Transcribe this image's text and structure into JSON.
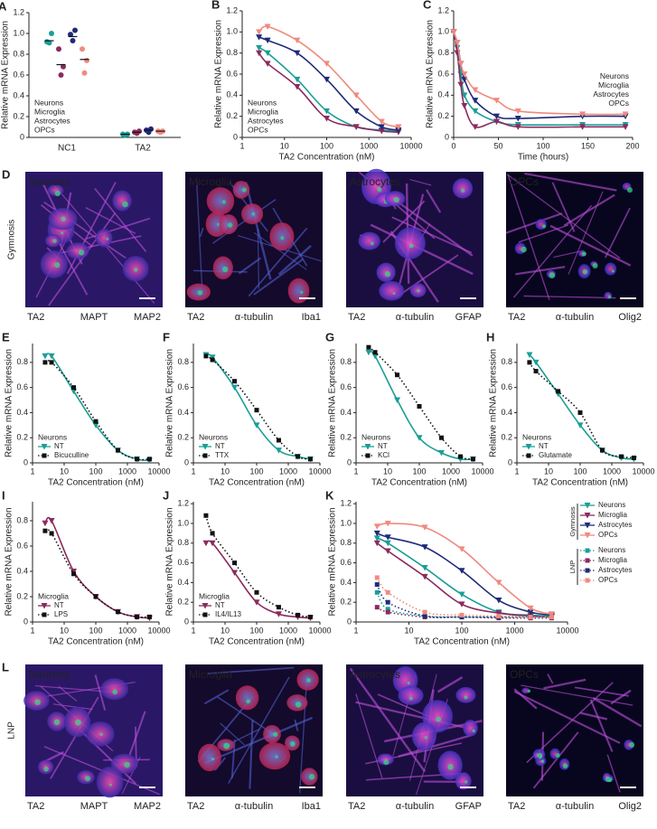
{
  "chart_data": [
    {
      "type": "dot",
      "panel": "A",
      "ylabel": "Relative mRNA Expression",
      "categories": [
        "NC1",
        "TA2"
      ],
      "ylim": [
        0,
        1.2
      ],
      "yticks": [
        0,
        0.2,
        0.4,
        0.6,
        0.8,
        {
          "value": 1,
          "label": "1.0"
        },
        1.2
      ],
      "legend": "lower left",
      "legend_markers": false,
      "series": [
        {
          "name": "Neurons",
          "color": "#1a9e96",
          "values": [
            [
              0.92,
              0.91,
              1.0
            ],
            [
              0.03,
              0.02,
              0.03
            ]
          ],
          "means": [
            0.93,
            0.03
          ]
        },
        {
          "name": "Microglia",
          "color": "#8b2a5e",
          "values": [
            [
              0.85,
              0.6,
              0.68
            ],
            [
              0.05,
              0.04,
              0.06
            ]
          ],
          "means": [
            0.7,
            0.05
          ]
        },
        {
          "name": "Astrocytes",
          "color": "#1f2a7a",
          "values": [
            [
              0.99,
              0.93,
              1.03
            ],
            [
              0.07,
              0.05,
              0.08
            ]
          ],
          "means": [
            0.97,
            0.07
          ]
        },
        {
          "name": "OPCs",
          "color": "#f08a7e",
          "values": [
            [
              0.85,
              0.62,
              0.74
            ],
            [
              0.06,
              0.05,
              0.06
            ]
          ],
          "means": [
            0.75,
            0.06
          ]
        }
      ]
    },
    {
      "type": "line",
      "panel": "B",
      "ylabel": "Relative mRNA Expression",
      "xlabel": "TA2 Concentration (nM)",
      "xscale": "log",
      "x": [
        2.5,
        4,
        20,
        100,
        500,
        2000,
        5000
      ],
      "xlim": [
        1,
        10000
      ],
      "xticks": [
        1,
        10,
        100,
        1000,
        10000
      ],
      "ylim": [
        0,
        1.2
      ],
      "yticks": [
        0,
        0.2,
        0.4,
        0.6,
        0.8,
        {
          "value": 1,
          "label": "1.0"
        },
        1.2
      ],
      "legend": "lower left",
      "legend_markers": false,
      "series": [
        {
          "name": "Neurons",
          "color": "#1a9e96",
          "marker": "triangle",
          "values": [
            0.85,
            0.8,
            0.55,
            0.25,
            0.1,
            0.07,
            0.06
          ]
        },
        {
          "name": "Microglia",
          "color": "#8b2a5e",
          "marker": "triangle",
          "values": [
            0.8,
            0.7,
            0.48,
            0.18,
            0.1,
            0.06,
            0.05
          ]
        },
        {
          "name": "Astrocytes",
          "color": "#1f2a7a",
          "marker": "triangle",
          "values": [
            0.95,
            0.92,
            0.8,
            0.55,
            0.25,
            0.1,
            0.07
          ]
        },
        {
          "name": "OPCs",
          "color": "#f08a7e",
          "marker": "triangle",
          "values": [
            1.0,
            1.05,
            0.92,
            0.7,
            0.4,
            0.15,
            0.1
          ]
        }
      ]
    },
    {
      "type": "line",
      "panel": "C",
      "ylabel": "Relative mRNA Expression",
      "xlabel": "Time (hours)",
      "x": [
        0,
        4,
        8,
        12,
        24,
        48,
        72,
        144,
        192
      ],
      "xlim": [
        0,
        200
      ],
      "xticks": [
        0,
        50,
        100,
        150,
        200
      ],
      "ylim": [
        0,
        1.2
      ],
      "yticks": [
        0,
        0.2,
        0.4,
        0.6,
        0.8,
        {
          "value": 1,
          "label": "1.0"
        },
        1.2
      ],
      "legend": "center right",
      "legend_markers": false,
      "series": [
        {
          "name": "Neurons",
          "color": "#1a9e96",
          "marker": "triangle",
          "values": [
            1.0,
            0.85,
            0.6,
            0.4,
            0.25,
            0.15,
            0.12,
            0.12,
            0.12
          ]
        },
        {
          "name": "Microglia",
          "color": "#8b2a5e",
          "marker": "triangle",
          "values": [
            1.0,
            0.8,
            0.5,
            0.3,
            0.1,
            0.15,
            0.1,
            0.1,
            0.1
          ]
        },
        {
          "name": "Astrocytes",
          "color": "#1f2a7a",
          "marker": "triangle",
          "values": [
            1.0,
            0.9,
            0.7,
            0.55,
            0.35,
            0.2,
            0.18,
            0.2,
            0.2
          ]
        },
        {
          "name": "OPCs",
          "color": "#f08a7e",
          "marker": "triangle",
          "values": [
            1.0,
            0.9,
            0.7,
            0.6,
            0.45,
            0.35,
            0.25,
            0.22,
            0.22
          ]
        }
      ]
    },
    {
      "type": "line",
      "panel": "E",
      "ylabel": "Relative mRNA Expression",
      "xlabel": "TA2 Concentration (nM)",
      "xscale": "log",
      "x": [
        2.5,
        4,
        20,
        100,
        500,
        2000,
        5000
      ],
      "xlim": [
        1,
        10000
      ],
      "xticks": [
        1,
        10,
        100,
        1000,
        10000
      ],
      "ylim": [
        0,
        0.95
      ],
      "yticks": [
        0,
        0.2,
        0.4,
        0.6,
        0.8
      ],
      "legend": "lower left",
      "legend_markers": true,
      "legend_title": "Neurons",
      "series": [
        {
          "name": "NT",
          "color": "#1a9e96",
          "marker": "triangle",
          "values": [
            0.85,
            0.85,
            0.57,
            0.3,
            0.1,
            0.03,
            0.02
          ]
        },
        {
          "name": "Bicuculline",
          "color": "#111111",
          "marker": "square",
          "dash": true,
          "values": [
            0.8,
            0.8,
            0.6,
            0.33,
            0.1,
            0.03,
            0.03
          ]
        }
      ]
    },
    {
      "type": "line",
      "panel": "F",
      "ylabel": "Relative mRNA Expression",
      "xlabel": "TA2 Concentration (nM)",
      "xscale": "log",
      "x": [
        2.5,
        4,
        20,
        100,
        500,
        2000,
        5000
      ],
      "xlim": [
        1,
        10000
      ],
      "xticks": [
        1,
        10,
        100,
        1000,
        10000
      ],
      "ylim": [
        0,
        0.95
      ],
      "yticks": [
        0,
        0.2,
        0.4,
        0.6,
        0.8
      ],
      "legend": "lower left",
      "legend_markers": true,
      "legend_title": "Neurons",
      "series": [
        {
          "name": "NT",
          "color": "#1a9e96",
          "marker": "triangle",
          "values": [
            0.86,
            0.84,
            0.6,
            0.3,
            0.1,
            0.05,
            0.03
          ]
        },
        {
          "name": "TTX",
          "color": "#111111",
          "marker": "square",
          "dash": true,
          "values": [
            0.85,
            0.82,
            0.65,
            0.42,
            0.18,
            0.05,
            0.03
          ]
        }
      ]
    },
    {
      "type": "line",
      "panel": "G",
      "ylabel": "Relative mRNA Expression",
      "xlabel": "TA2 Concentration (nM)",
      "xscale": "log",
      "x": [
        2.5,
        4,
        20,
        100,
        500,
        2000,
        5000
      ],
      "xlim": [
        1,
        10000
      ],
      "xticks": [
        1,
        10,
        100,
        1000,
        10000
      ],
      "ylim": [
        0,
        0.95
      ],
      "yticks": [
        0,
        0.2,
        0.4,
        0.6,
        0.8
      ],
      "legend": "lower left",
      "legend_markers": true,
      "legend_title": "Neurons",
      "series": [
        {
          "name": "NT",
          "color": "#1a9e96",
          "marker": "triangle",
          "values": [
            0.88,
            0.85,
            0.5,
            0.2,
            0.08,
            0.03,
            0.03
          ]
        },
        {
          "name": "KCl",
          "color": "#111111",
          "marker": "square",
          "dash": true,
          "values": [
            0.92,
            0.88,
            0.7,
            0.45,
            0.2,
            0.05,
            0.03
          ]
        }
      ]
    },
    {
      "type": "line",
      "panel": "H",
      "ylabel": "Relative mRNA Expression",
      "xlabel": "TA2 Concentration (nM)",
      "xscale": "log",
      "x": [
        2.5,
        4,
        20,
        100,
        500,
        2000,
        5000
      ],
      "xlim": [
        1,
        10000
      ],
      "xticks": [
        1,
        10,
        100,
        1000,
        10000
      ],
      "ylim": [
        0,
        0.95
      ],
      "yticks": [
        0,
        0.2,
        0.4,
        0.6,
        0.8
      ],
      "legend": "lower left",
      "legend_markers": true,
      "legend_title": "Neurons",
      "series": [
        {
          "name": "NT",
          "color": "#1a9e96",
          "marker": "triangle",
          "values": [
            0.86,
            0.8,
            0.55,
            0.3,
            0.1,
            0.04,
            0.03
          ]
        },
        {
          "name": "Glutamate",
          "color": "#111111",
          "marker": "square",
          "dash": true,
          "values": [
            0.8,
            0.73,
            0.57,
            0.4,
            0.1,
            0.05,
            0.04
          ]
        }
      ]
    },
    {
      "type": "line",
      "panel": "I",
      "ylabel": "Relative mRNA Expression",
      "xlabel": "TA2 Concentration (nM)",
      "xscale": "log",
      "x": [
        2.5,
        4,
        20,
        100,
        500,
        2000,
        5000
      ],
      "xlim": [
        1,
        10000
      ],
      "xticks": [
        1,
        10,
        100,
        1000,
        10000
      ],
      "ylim": [
        0,
        0.95
      ],
      "yticks": [
        0,
        0.2,
        0.4,
        0.6,
        0.8
      ],
      "legend": "lower left",
      "legend_markers": true,
      "legend_title": "Microglia",
      "series": [
        {
          "name": "NT",
          "color": "#8b2a5e",
          "marker": "triangle",
          "values": [
            0.78,
            0.8,
            0.4,
            0.2,
            0.08,
            0.04,
            0.03
          ]
        },
        {
          "name": "LPS",
          "color": "#111111",
          "marker": "square",
          "dash": true,
          "values": [
            0.72,
            0.7,
            0.38,
            0.2,
            0.08,
            0.04,
            0.04
          ]
        }
      ]
    },
    {
      "type": "line",
      "panel": "J",
      "ylabel": "Relative mRNA Expression",
      "xlabel": "TA2 Concentration (nM)",
      "xscale": "log",
      "x": [
        2.5,
        4,
        20,
        100,
        500,
        2000,
        5000
      ],
      "xlim": [
        1,
        10000
      ],
      "xticks": [
        1,
        10,
        100,
        1000,
        10000
      ],
      "ylim": [
        0,
        1.22
      ],
      "yticks": [
        0,
        0.2,
        0.4,
        0.6,
        0.8,
        {
          "value": 1,
          "label": "1.0"
        },
        1.2
      ],
      "legend": "lower left",
      "legend_markers": true,
      "legend_title": "Microglia",
      "series": [
        {
          "name": "NT",
          "color": "#8b2a5e",
          "marker": "triangle",
          "values": [
            0.8,
            0.8,
            0.5,
            0.2,
            0.08,
            0.05,
            0.04
          ]
        },
        {
          "name": "IL4/IL13",
          "color": "#111111",
          "marker": "square",
          "dash": true,
          "values": [
            1.08,
            0.9,
            0.6,
            0.3,
            0.15,
            0.07,
            0.05
          ]
        }
      ]
    },
    {
      "type": "line",
      "panel": "K",
      "ylabel": "Relative mRNA Expression",
      "xlabel": "TA2 Concentration (nM)",
      "xscale": "log",
      "x": [
        2.5,
        4,
        20,
        100,
        500,
        2000,
        5000
      ],
      "xlim": [
        1,
        10000
      ],
      "xticks": [
        1,
        10,
        100,
        1000,
        10000
      ],
      "ylim": [
        0,
        1.22
      ],
      "yticks": [
        0,
        0.2,
        0.4,
        0.6,
        0.8,
        {
          "value": 1,
          "label": "1.0"
        },
        1.2
      ],
      "legend": "outside right",
      "legend_markers": true,
      "legend_titles": [
        "Gymnosis",
        "LNP"
      ],
      "series": [
        {
          "name": "Neurons",
          "color": "#1a9e96",
          "marker": "triangle",
          "values": [
            0.85,
            0.8,
            0.55,
            0.28,
            0.1,
            0.07,
            0.06
          ]
        },
        {
          "name": "Microglia",
          "color": "#8b2a5e",
          "marker": "triangle",
          "values": [
            0.8,
            0.72,
            0.46,
            0.18,
            0.09,
            0.06,
            0.05
          ]
        },
        {
          "name": "Astrocytes",
          "color": "#1f2a7a",
          "marker": "triangle",
          "values": [
            0.9,
            0.86,
            0.76,
            0.52,
            0.22,
            0.1,
            0.07
          ]
        },
        {
          "name": "OPCs",
          "color": "#f08a7e",
          "marker": "triangle",
          "values": [
            0.97,
            1.0,
            0.96,
            0.74,
            0.4,
            0.14,
            0.08
          ]
        },
        {
          "name": "Neurons",
          "color": "#1a9e96",
          "marker": "square",
          "dash": true,
          "values": [
            0.3,
            0.13,
            0.06,
            0.05,
            0.05,
            0.05,
            0.05
          ]
        },
        {
          "name": "Microglia",
          "color": "#8b2a5e",
          "marker": "square",
          "dash": true,
          "values": [
            0.15,
            0.1,
            0.05,
            0.05,
            0.04,
            0.04,
            0.04
          ]
        },
        {
          "name": "Astrocytes",
          "color": "#1f2a7a",
          "marker": "square",
          "dash": true,
          "values": [
            0.38,
            0.2,
            0.06,
            0.05,
            0.05,
            0.05,
            0.05
          ]
        },
        {
          "name": "OPCs",
          "color": "#f08a7e",
          "marker": "square",
          "dash": true,
          "values": [
            0.45,
            0.3,
            0.1,
            0.07,
            0.06,
            0.05,
            0.05
          ]
        }
      ]
    }
  ],
  "micrographs": [
    {
      "panel": "D",
      "row_label": "Gymnosis",
      "tiles": [
        {
          "title": "Neurons",
          "channels": [
            "TA2",
            "MAPT",
            "MAP2"
          ]
        },
        {
          "title": "Microglia",
          "channels": [
            "TA2",
            "α-tubulin",
            "Iba1"
          ]
        },
        {
          "title": "Astrocytes",
          "channels": [
            "TA2",
            "α-tubulin",
            "GFAP"
          ]
        },
        {
          "title": "OPCs",
          "channels": [
            "TA2",
            "α-tubulin",
            "Olig2"
          ]
        }
      ]
    },
    {
      "panel": "L",
      "row_label": "LNP",
      "tiles": [
        {
          "title": "Neurons",
          "channels": [
            "TA2",
            "MAPT",
            "MAP2"
          ]
        },
        {
          "title": "Microglia",
          "channels": [
            "TA2",
            "α-tubulin",
            "Iba1"
          ]
        },
        {
          "title": "Astrocytes",
          "channels": [
            "TA2",
            "α-tubulin",
            "GFAP"
          ]
        },
        {
          "title": "OPCs",
          "channels": [
            "TA2",
            "α-tubulin",
            "Olig2"
          ]
        }
      ]
    }
  ]
}
